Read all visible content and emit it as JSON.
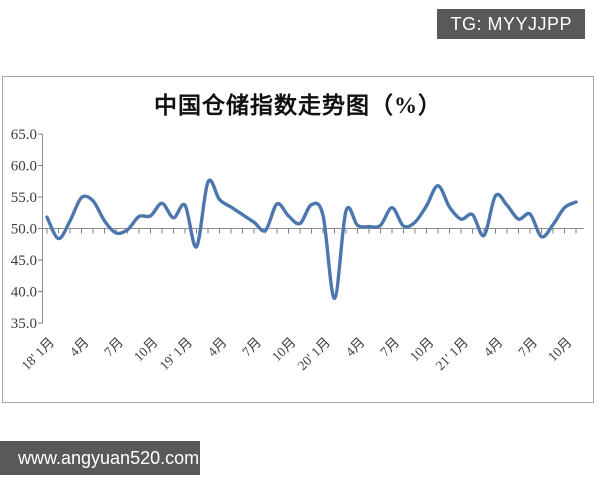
{
  "watermarks": {
    "telegram_badge": "TG: MYYJJPP",
    "website_badge": "www.angyuan520.com"
  },
  "colors": {
    "badge_bg": "#59595b",
    "badge_text": "#ffffff",
    "line": "#4b76ae",
    "axis": "#8f8f8f",
    "tick": "#7f7f7f",
    "label_text": "#3d3d3d",
    "chart_border": "#a6a6a6"
  },
  "chart_data": {
    "type": "line",
    "title": "中国仓储指数走势图（%）",
    "ylim": [
      35,
      65
    ],
    "y_tick_labels": [
      "65.0",
      "60.0",
      "55.0",
      "50.0",
      "45.0",
      "40.0",
      "35.0"
    ],
    "y_tick_values": [
      65,
      60,
      55,
      50,
      45,
      40,
      35
    ],
    "x_axis_cross_value": 50,
    "x_tick_labels": [
      "18' 1月",
      "4月",
      "7月",
      "10月",
      "19' 1月",
      "4月",
      "7月",
      "10月",
      "20' 1月",
      "4月",
      "7月",
      "10月",
      "21' 1月",
      "4月",
      "7月",
      "10月"
    ],
    "x_label_interval": 3,
    "grid": "off",
    "legend": "none",
    "series": [
      {
        "name": "中国仓储指数",
        "values": [
          51.8,
          48.4,
          51.2,
          54.9,
          54.4,
          51.2,
          49.3,
          49.8,
          51.9,
          52.0,
          54.0,
          51.7,
          53.7,
          47.1,
          57.4,
          54.6,
          53.4,
          52.2,
          51.0,
          49.7,
          53.9,
          52.0,
          50.8,
          53.8,
          52.1,
          38.9,
          52.8,
          50.5,
          50.3,
          50.5,
          53.3,
          50.4,
          51.0,
          53.6,
          56.8,
          53.4,
          51.5,
          52.2,
          48.9,
          55.2,
          53.7,
          51.5,
          52.3,
          48.7,
          50.6,
          53.3,
          54.2
        ]
      }
    ]
  }
}
